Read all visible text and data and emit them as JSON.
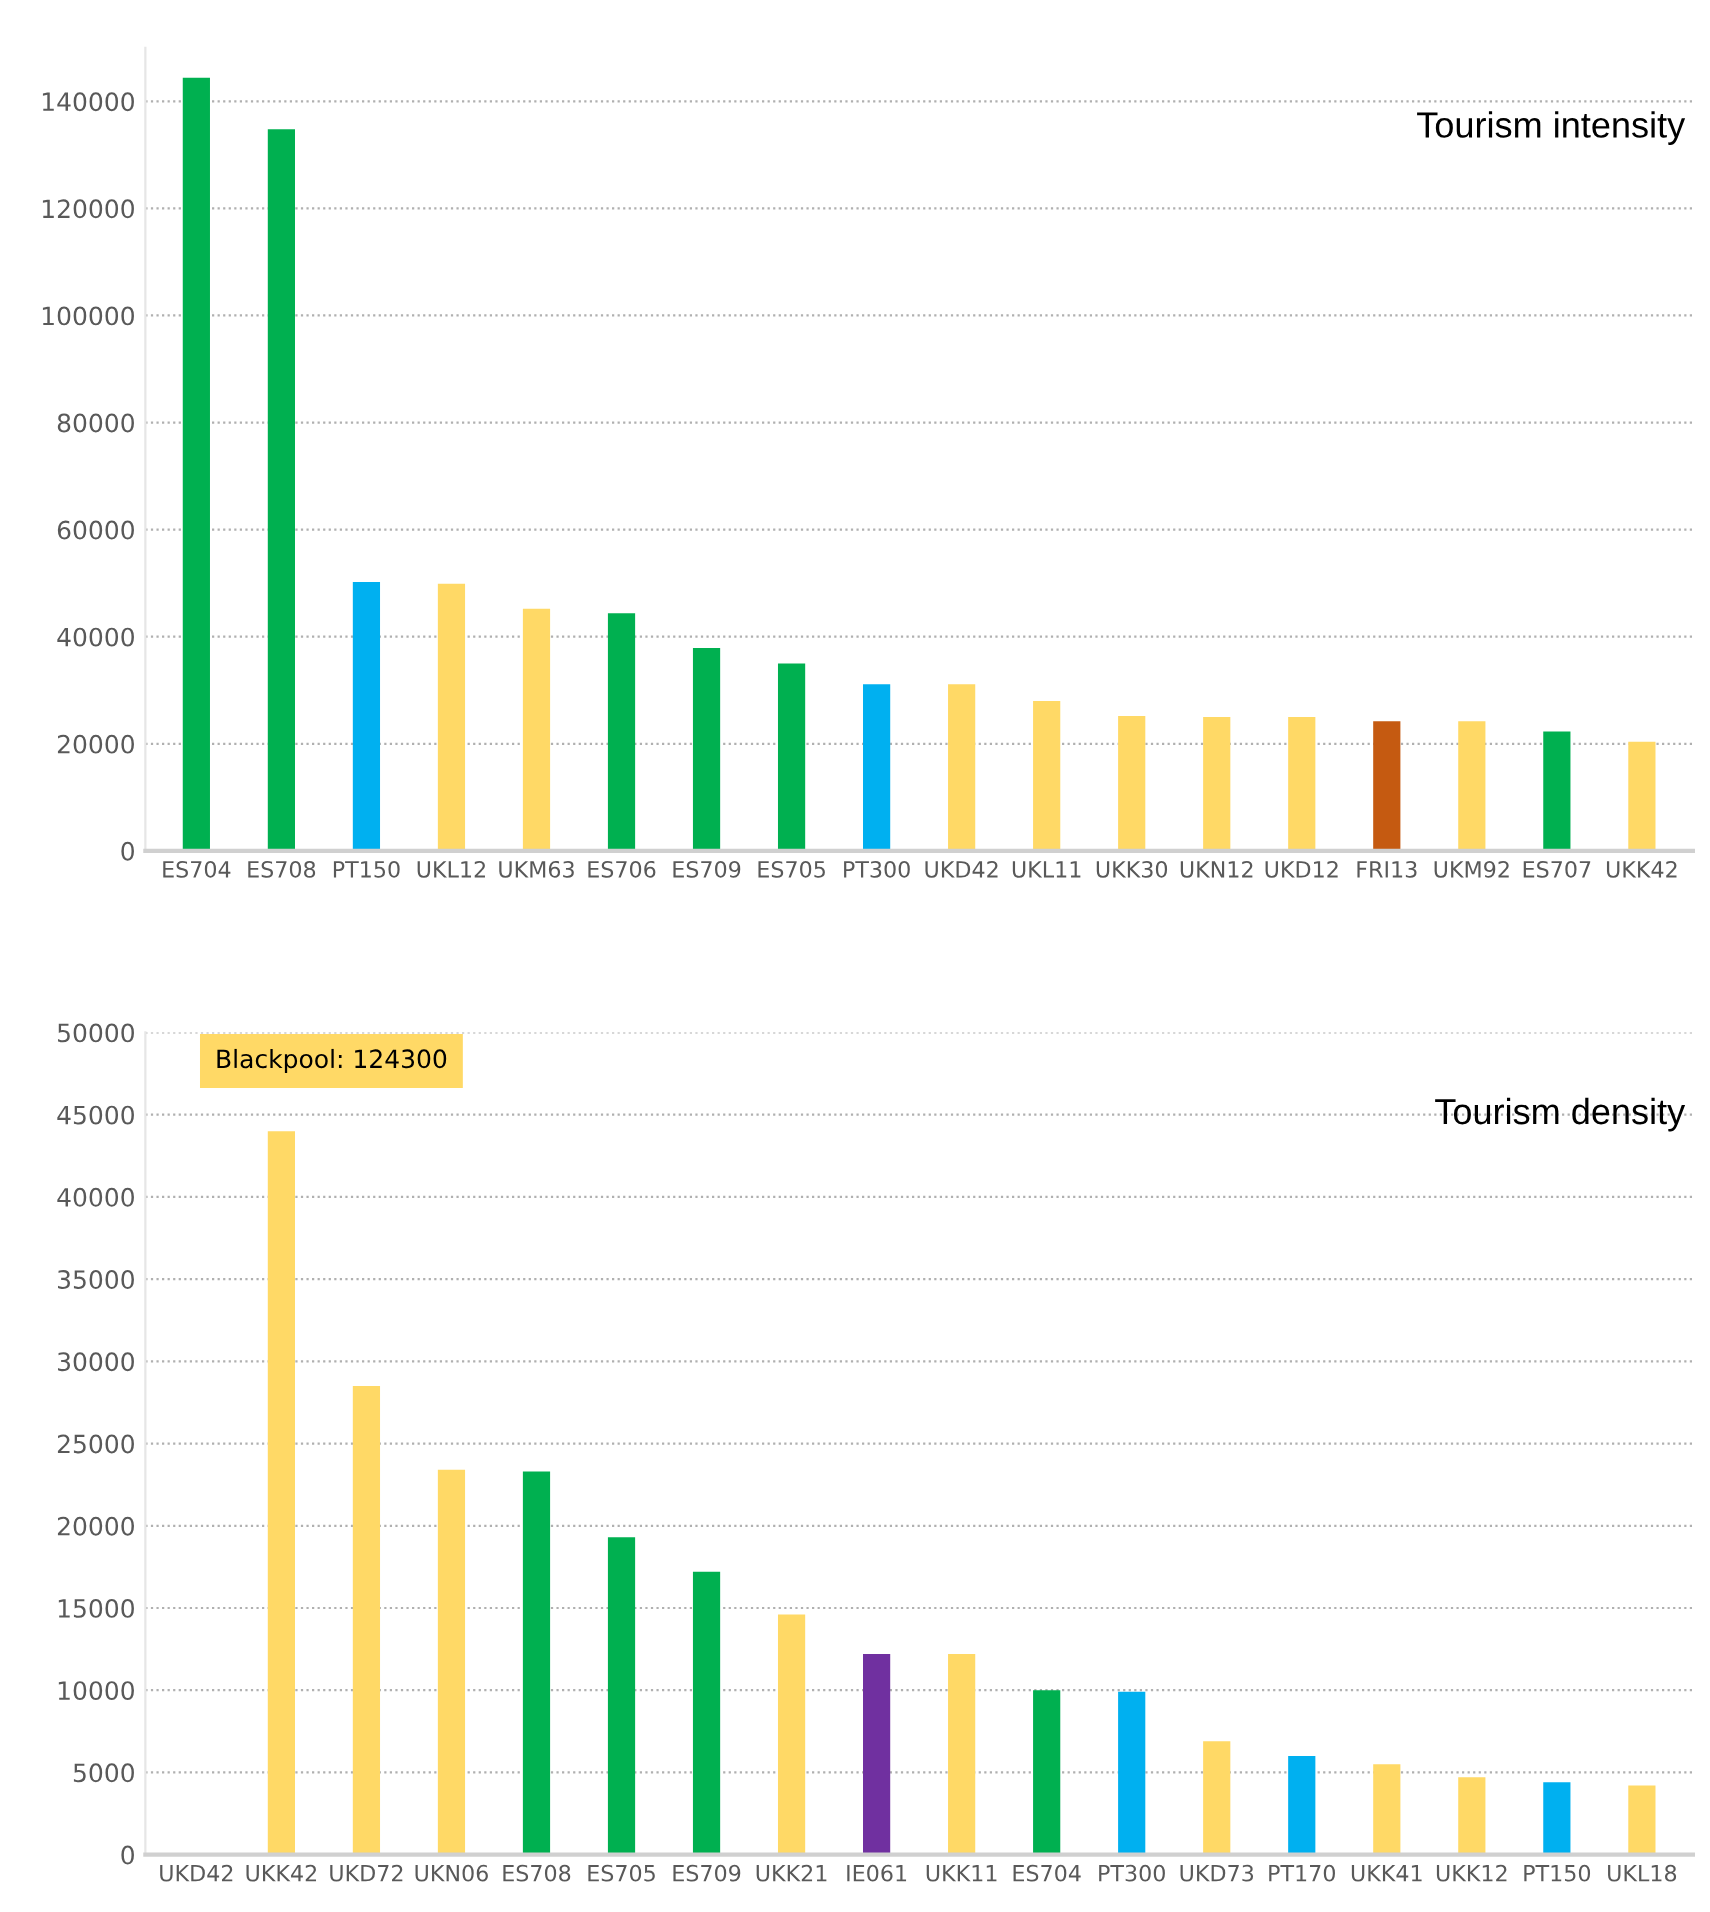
{
  "chart_data": [
    {
      "type": "bar",
      "title": "Tourism intensity",
      "categories": [
        "ES704",
        "ES708",
        "PT150",
        "UKL12",
        "UKM63",
        "ES706",
        "ES709",
        "ES705",
        "PT300",
        "UKD42",
        "UKL11",
        "UKK30",
        "UKN12",
        "UKD12",
        "FRI13",
        "UKM92",
        "ES707",
        "UKK42"
      ],
      "values": [
        144400,
        134800,
        50200,
        49900,
        45200,
        44400,
        37900,
        35000,
        31100,
        31100,
        28000,
        25200,
        25000,
        25000,
        24200,
        24200,
        22300,
        20400
      ],
      "colors": [
        "#00b050",
        "#00b050",
        "#00b0f0",
        "#ffd966",
        "#ffd966",
        "#00b050",
        "#00b050",
        "#00b050",
        "#00b0f0",
        "#ffd966",
        "#ffd966",
        "#ffd966",
        "#ffd966",
        "#ffd966",
        "#c55a11",
        "#ffd966",
        "#00b050",
        "#ffd966"
      ],
      "ylim": [
        0,
        150000
      ],
      "yticks": [
        0,
        20000,
        40000,
        60000,
        80000,
        100000,
        120000,
        140000
      ],
      "grid": "y"
    },
    {
      "type": "bar",
      "title": "Tourism density",
      "categories": [
        "UKD42",
        "UKK42",
        "UKD72",
        "UKN06",
        "ES708",
        "ES705",
        "ES709",
        "UKK21",
        "IE061",
        "UKK11",
        "ES704",
        "PT300",
        "UKD73",
        "PT170",
        "UKK41",
        "UKK12",
        "PT150",
        "UKL18"
      ],
      "values": [
        null,
        44000,
        28500,
        23400,
        23300,
        19300,
        17200,
        14600,
        12200,
        12200,
        10000,
        9900,
        6900,
        6000,
        5500,
        4700,
        4400,
        4200
      ],
      "colors": [
        "#ffd966",
        "#ffd966",
        "#ffd966",
        "#ffd966",
        "#00b050",
        "#00b050",
        "#00b050",
        "#ffd966",
        "#7030a0",
        "#ffd966",
        "#00b050",
        "#00b0f0",
        "#ffd966",
        "#00b0f0",
        "#ffd966",
        "#ffd966",
        "#00b0f0",
        "#ffd966"
      ],
      "ylim": [
        0,
        50000
      ],
      "yticks": [
        0,
        5000,
        10000,
        15000,
        20000,
        25000,
        30000,
        35000,
        40000,
        45000,
        50000
      ],
      "grid": "y",
      "annotations": [
        "Blackpool: 124300"
      ]
    }
  ]
}
